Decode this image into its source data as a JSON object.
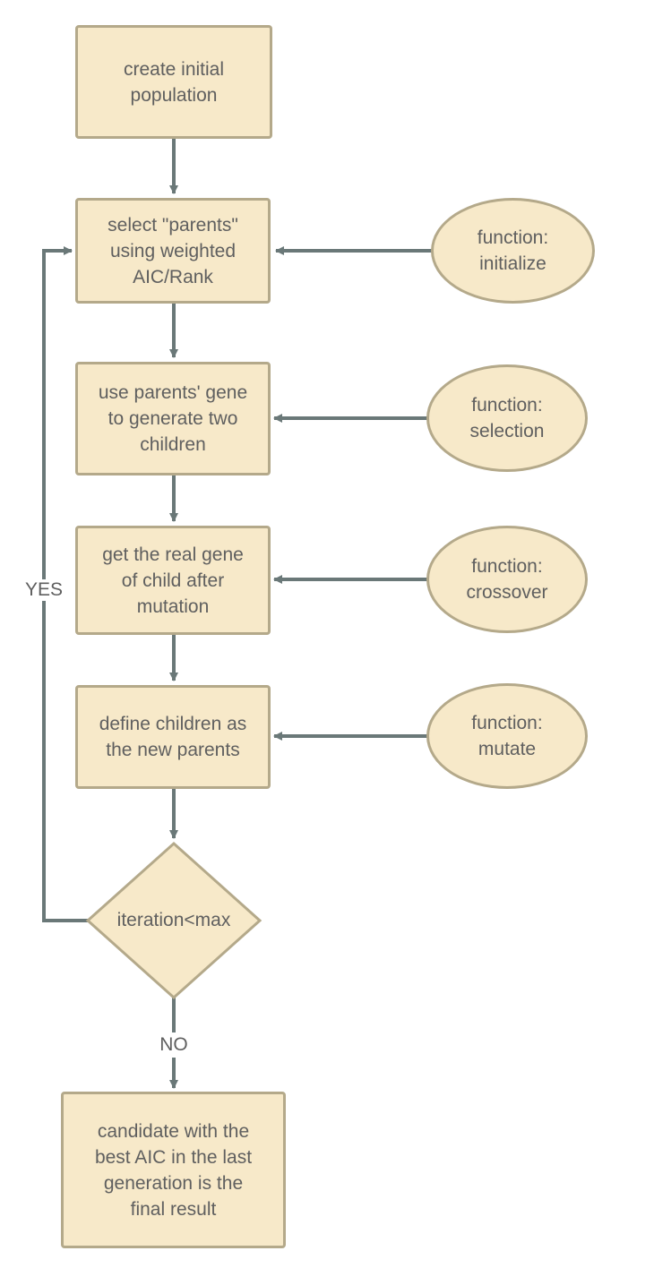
{
  "colors": {
    "fill": "#f7e9c9",
    "border": "#b4a98a",
    "connector": "#6a7878",
    "text": "#5f5f5f"
  },
  "steps": [
    {
      "id": "create",
      "text": "create initial\npopulation"
    },
    {
      "id": "select",
      "text": "select \"parents\"\nusing weighted\nAIC/Rank"
    },
    {
      "id": "generate",
      "text": "use parents' gene\nto generate two\nchildren"
    },
    {
      "id": "mutation",
      "text": "get the real gene\nof child after\nmutation"
    },
    {
      "id": "define",
      "text": "define children as\nthe new parents"
    }
  ],
  "functions": [
    {
      "id": "initialize",
      "text": "function:\ninitialize"
    },
    {
      "id": "selection",
      "text": "function:\nselection"
    },
    {
      "id": "crossover",
      "text": "function:\ncrossover"
    },
    {
      "id": "mutate",
      "text": "function:\nmutate"
    }
  ],
  "decision": {
    "text": "iteration<max"
  },
  "labels": {
    "yes": "YES",
    "no": "NO"
  },
  "result": {
    "text": "candidate with the\nbest AIC in the last\ngeneration is the\nfinal result"
  }
}
